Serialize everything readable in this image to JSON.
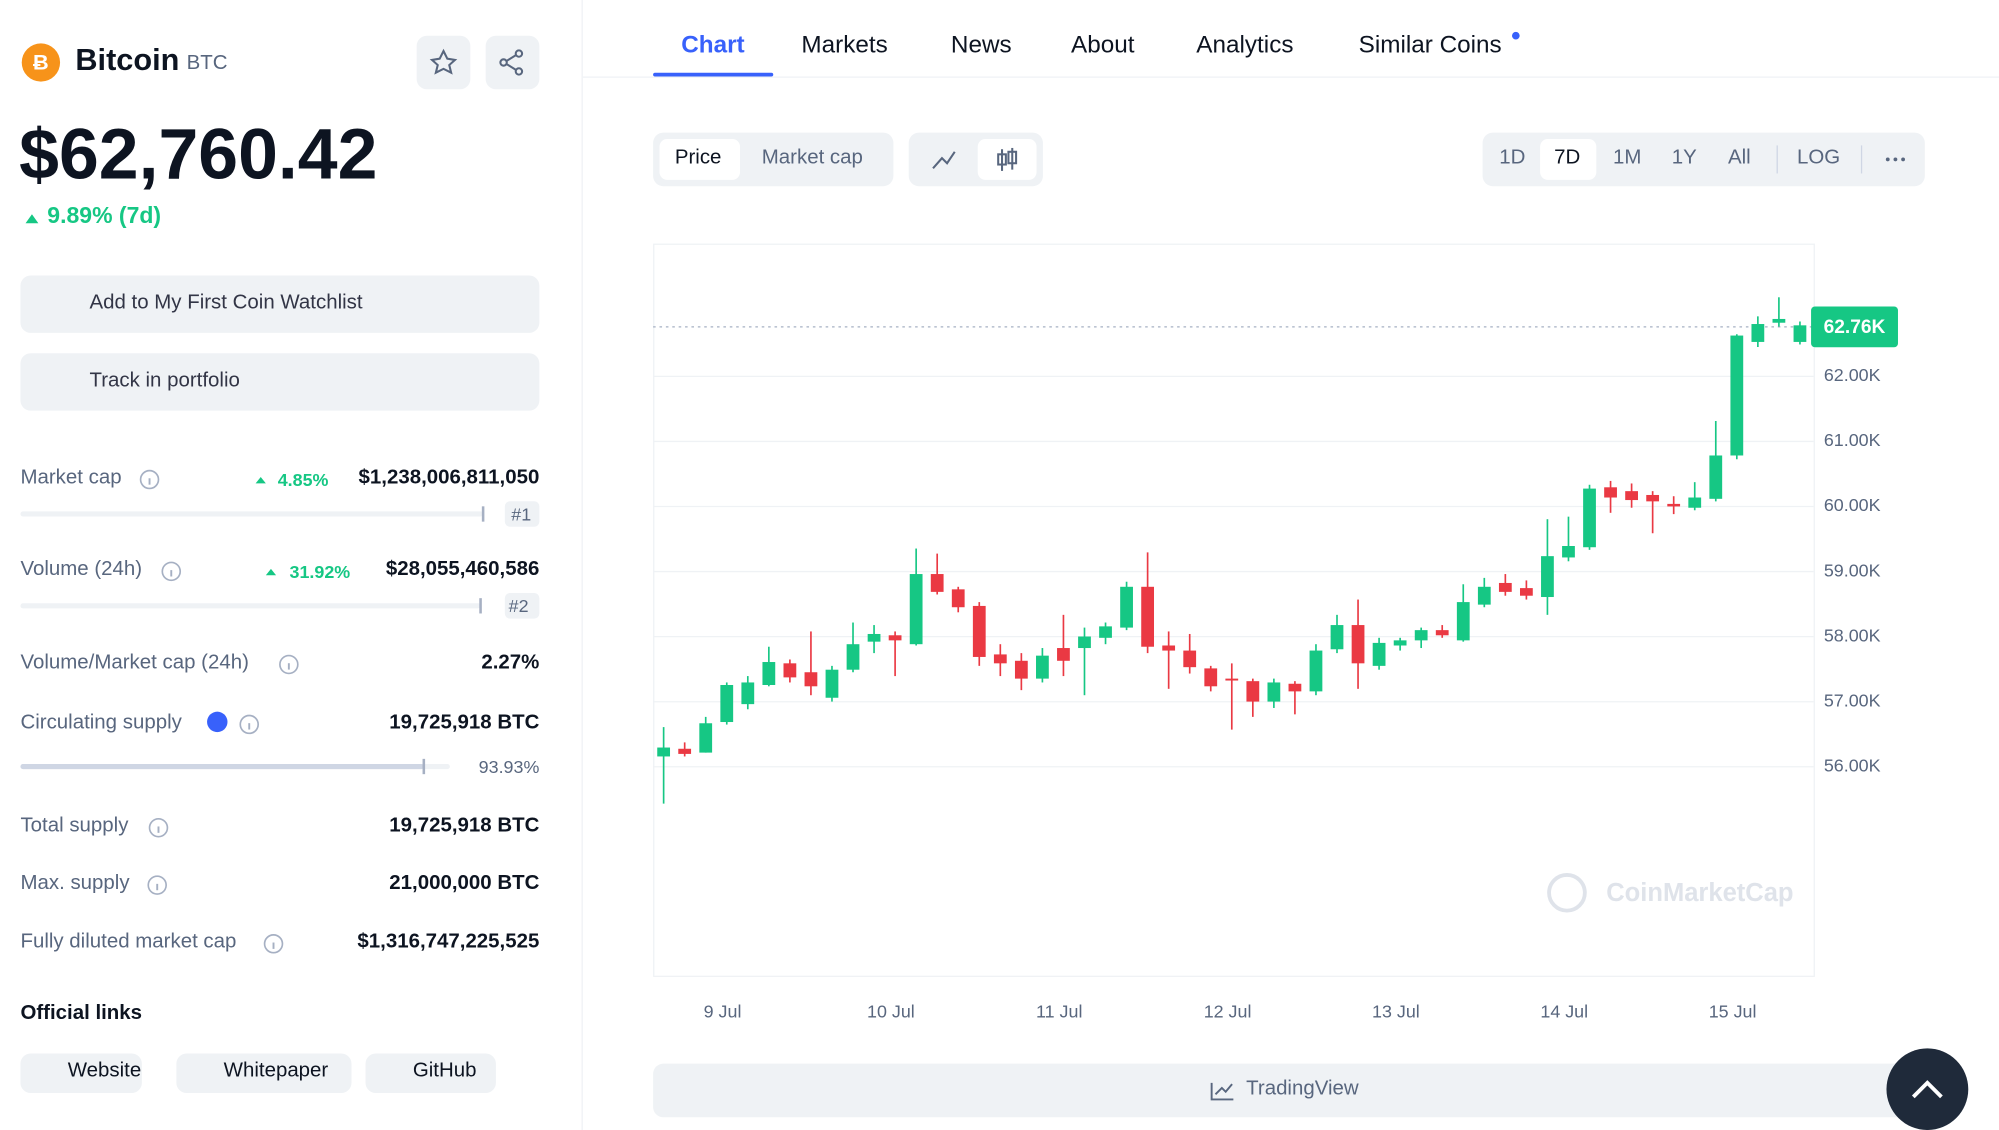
{
  "coin": {
    "name": "Bitcoin",
    "symbol": "BTC",
    "price": "$62,760.42",
    "change": "9.89% (7d)"
  },
  "actions": [
    "Add to My First Coin Watchlist",
    "Track in portfolio"
  ],
  "stats": [
    {
      "label": "Market cap",
      "change": "4.85%",
      "value": "$1,238,006,811,050",
      "rank": "#1"
    },
    {
      "label": "Volume (24h)",
      "change": "31.92%",
      "value": "$28,055,460,586",
      "rank": "#2"
    },
    {
      "label": "Volume/Market cap (24h)",
      "value": "2.27%"
    },
    {
      "label": "Circulating supply",
      "value": "19,725,918 BTC",
      "percent": {
        "value": 93.93,
        "label": "93.93%"
      }
    },
    {
      "label": "Total supply",
      "value": "19,725,918 BTC"
    },
    {
      "label": "Max. supply",
      "value": "21,000,000 BTC"
    },
    {
      "label": "Fully diluted market cap",
      "value": "$1,316,747,225,525"
    }
  ],
  "links_title": "Official links",
  "links": [
    "Website",
    "Whitepaper",
    "GitHub"
  ],
  "tabs": [
    "Chart",
    "Markets",
    "News",
    "About",
    "Analytics",
    "Similar Coins"
  ],
  "toggles": [
    "Price",
    "Market cap"
  ],
  "ranges": [
    "1D",
    "7D",
    "1M",
    "1Y",
    "All",
    "LOG"
  ],
  "tradingview": "TradingView",
  "chart_data": {
    "type": "candlestick",
    "watermark": "CoinMarketCap",
    "up_color": "#16c784",
    "down_color": "#ea3943",
    "ylim": [
      52790,
      64040
    ],
    "yticks": [
      {
        "value": 56000,
        "label": "56.00K"
      },
      {
        "value": 57000,
        "label": "57.00K"
      },
      {
        "value": 58000,
        "label": "58.00K"
      },
      {
        "value": 59000,
        "label": "59.00K"
      },
      {
        "value": 60000,
        "label": "60.00K"
      },
      {
        "value": 61000,
        "label": "61.00K"
      },
      {
        "value": 62000,
        "label": "62.00K"
      }
    ],
    "xlim": [
      -0.5,
      54.65
    ],
    "xticks": [
      {
        "value": 2.8,
        "label": "9 Jul"
      },
      {
        "value": 10.8,
        "label": "10 Jul"
      },
      {
        "value": 18.8,
        "label": "11 Jul"
      },
      {
        "value": 26.8,
        "label": "12 Jul"
      },
      {
        "value": 34.8,
        "label": "13 Jul"
      },
      {
        "value": 42.8,
        "label": "14 Jul"
      },
      {
        "value": 50.8,
        "label": "15 Jul"
      }
    ],
    "last_price": {
      "value": 62760,
      "label": "62.76K"
    },
    "open": [
      56159,
      56277,
      56218,
      56688,
      56963,
      57257,
      57590,
      57453,
      57061,
      57492,
      57923,
      58021,
      57884,
      58962,
      58727,
      58472,
      57727,
      57629,
      57355,
      57825,
      57825,
      57982,
      58139,
      58766,
      57864,
      57786,
      57512,
      57355,
      57316,
      57002,
      57276,
      57159,
      57806,
      58178,
      57551,
      57864,
      57943,
      58100,
      57943,
      58492,
      58825,
      58746,
      58609,
      59217,
      59374,
      60295,
      60236,
      60177,
      60040,
      59981,
      60118,
      60784,
      62529,
      62824,
      62529
    ],
    "high": [
      56610,
      56375,
      56767,
      57296,
      57394,
      57845,
      57649,
      58080,
      57551,
      58217,
      58178,
      58080,
      59354,
      59276,
      58766,
      58531,
      57884,
      57747,
      57825,
      58335,
      58139,
      58217,
      58844,
      59295,
      58080,
      58041,
      57551,
      57590,
      57355,
      57355,
      57316,
      57884,
      58335,
      58570,
      57982,
      57982,
      58139,
      58178,
      58805,
      58903,
      58962,
      58864,
      59805,
      59844,
      60334,
      60393,
      60354,
      60236,
      60158,
      60374,
      61314,
      62647,
      62922,
      63215,
      62843
    ],
    "low": [
      55434,
      56159,
      56218,
      56649,
      56884,
      57237,
      57296,
      57100,
      57002,
      57453,
      57747,
      57394,
      57864,
      58648,
      58374,
      57551,
      57394,
      57178,
      57296,
      57394,
      57100,
      57884,
      58100,
      57747,
      57198,
      57433,
      57159,
      56571,
      56767,
      56904,
      56806,
      57100,
      57747,
      57198,
      57492,
      57786,
      57825,
      57982,
      57923,
      58452,
      58629,
      58570,
      58335,
      59158,
      59334,
      59903,
      59981,
      59589,
      59883,
      59942,
      60079,
      60726,
      62451,
      62765,
      62490
    ],
    "close": [
      56296,
      56198,
      56669,
      57257,
      57296,
      57610,
      57374,
      57237,
      57492,
      57884,
      58041,
      57943,
      58962,
      58688,
      58452,
      57688,
      57590,
      57355,
      57708,
      57629,
      58002,
      58158,
      58766,
      57845,
      57786,
      57531,
      57237,
      57335,
      57002,
      57296,
      57159,
      57786,
      58178,
      57590,
      57904,
      57943,
      58100,
      58021,
      58531,
      58766,
      58688,
      58629,
      59237,
      59393,
      60275,
      60138,
      60099,
      60079,
      60001,
      60138,
      60784,
      62627,
      62804,
      62882,
      62784
    ]
  }
}
